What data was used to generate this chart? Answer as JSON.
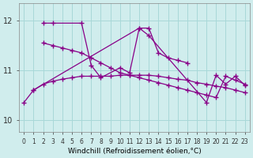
{
  "background_color": "#d0eded",
  "grid_color": "#a8d8d8",
  "line_color": "#880088",
  "xlim": [
    -0.5,
    23.5
  ],
  "ylim": [
    9.75,
    12.35
  ],
  "yticks": [
    10,
    11,
    12
  ],
  "xticks": [
    0,
    1,
    2,
    3,
    4,
    5,
    6,
    7,
    8,
    9,
    10,
    11,
    12,
    13,
    14,
    15,
    16,
    17,
    18,
    19,
    20,
    21,
    22,
    23
  ],
  "xlabel": "Windchill (Refroidissement éolien,°C)",
  "series": [
    {
      "x": [
        2,
        3,
        6,
        7,
        8,
        10,
        11,
        12,
        13,
        14,
        15,
        16,
        17
      ],
      "y": [
        11.95,
        11.95,
        11.95,
        11.1,
        10.85,
        11.05,
        10.95,
        11.85,
        11.85,
        11.35,
        11.25,
        11.2,
        11.15
      ]
    },
    {
      "x": [
        1,
        2,
        3,
        4,
        5,
        6,
        7,
        8,
        9,
        10,
        11,
        12,
        13,
        14,
        15,
        16,
        17,
        18,
        19,
        20,
        21,
        22,
        23
      ],
      "y": [
        10.6,
        10.72,
        10.78,
        10.82,
        10.85,
        10.88,
        10.88,
        10.88,
        10.88,
        10.9,
        10.9,
        10.9,
        10.9,
        10.88,
        10.85,
        10.82,
        10.8,
        10.75,
        10.72,
        10.68,
        10.65,
        10.6,
        10.55
      ]
    },
    {
      "x": [
        2,
        3,
        4,
        5,
        6,
        7,
        8,
        9,
        10,
        11,
        12,
        13,
        14,
        15,
        16,
        17,
        18,
        19,
        20,
        21,
        22,
        23
      ],
      "y": [
        11.55,
        11.5,
        11.45,
        11.4,
        11.35,
        11.25,
        11.15,
        11.05,
        10.95,
        10.9,
        10.85,
        10.8,
        10.75,
        10.7,
        10.65,
        10.6,
        10.55,
        10.5,
        10.45,
        10.88,
        10.8,
        10.72
      ]
    },
    {
      "x": [
        0,
        1,
        12,
        13,
        19,
        20,
        21,
        22,
        23
      ],
      "y": [
        10.35,
        10.6,
        11.85,
        11.7,
        10.35,
        10.9,
        10.72,
        10.88,
        10.7
      ]
    }
  ]
}
